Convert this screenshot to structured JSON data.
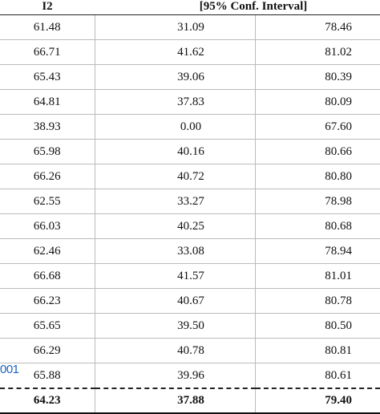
{
  "table": {
    "headers": [
      "I2",
      "[95% Conf. Interval]"
    ],
    "rows": [
      [
        "61.48",
        "31.09",
        "78.46"
      ],
      [
        "66.71",
        "41.62",
        "81.02"
      ],
      [
        "65.43",
        "39.06",
        "80.39"
      ],
      [
        "64.81",
        "37.83",
        "80.09"
      ],
      [
        "38.93",
        "0.00",
        "67.60"
      ],
      [
        "65.98",
        "40.16",
        "80.66"
      ],
      [
        "66.26",
        "40.72",
        "80.80"
      ],
      [
        "62.55",
        "33.27",
        "78.98"
      ],
      [
        "66.03",
        "40.25",
        "80.68"
      ],
      [
        "62.46",
        "33.08",
        "78.94"
      ],
      [
        "66.68",
        "41.57",
        "81.01"
      ],
      [
        "66.23",
        "40.67",
        "80.78"
      ],
      [
        "65.65",
        "39.50",
        "80.50"
      ],
      [
        "66.29",
        "40.78",
        "80.81"
      ],
      [
        "65.88",
        "39.96",
        "80.61"
      ]
    ],
    "total": [
      "64.23",
      "37.88",
      "79.40"
    ]
  },
  "footer": {
    "link_text": "001"
  }
}
